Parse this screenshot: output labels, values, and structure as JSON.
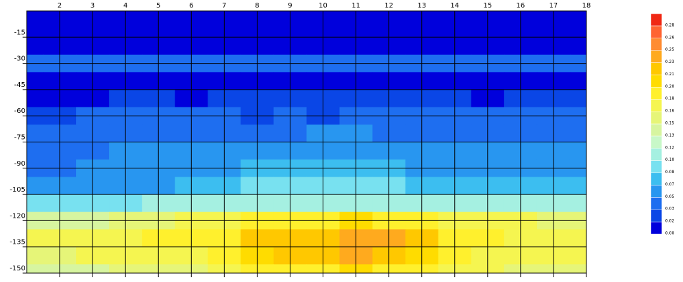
{
  "chart_data": {
    "type": "contour",
    "x": [
      1,
      2,
      3,
      4,
      5,
      6,
      7,
      8,
      9,
      10,
      11,
      12,
      13,
      14,
      15,
      16,
      17,
      18
    ],
    "y": [
      0,
      -10,
      -20,
      -30,
      -40,
      -50,
      -60,
      -70,
      -80,
      -90,
      -100,
      -110,
      -120,
      -130,
      -140,
      -150
    ],
    "z": [
      [
        0.01,
        0.01,
        0.01,
        0.01,
        0.01,
        0.01,
        0.01,
        0.01,
        0.01,
        0.01,
        0.01,
        0.01,
        0.01,
        0.01,
        0.01,
        0.01,
        0.01,
        0.01
      ],
      [
        0.01,
        0.01,
        0.01,
        0.01,
        0.01,
        0.01,
        0.01,
        0.01,
        0.01,
        0.01,
        0.01,
        0.01,
        0.01,
        0.01,
        0.01,
        0.01,
        0.01,
        0.01
      ],
      [
        0.015,
        0.015,
        0.015,
        0.015,
        0.015,
        0.015,
        0.015,
        0.015,
        0.015,
        0.015,
        0.015,
        0.015,
        0.015,
        0.015,
        0.015,
        0.015,
        0.015,
        0.015
      ],
      [
        0.045,
        0.045,
        0.045,
        0.045,
        0.045,
        0.045,
        0.045,
        0.045,
        0.045,
        0.045,
        0.045,
        0.045,
        0.045,
        0.045,
        0.045,
        0.045,
        0.045,
        0.045
      ],
      [
        0.01,
        0.01,
        0.01,
        0.01,
        0.01,
        0.01,
        0.01,
        0.015,
        0.015,
        0.015,
        0.015,
        0.015,
        0.01,
        0.01,
        0.01,
        0.01,
        0.01,
        0.01
      ],
      [
        0.012,
        0.012,
        0.012,
        0.025,
        0.025,
        0.012,
        0.025,
        0.025,
        0.025,
        0.025,
        0.025,
        0.025,
        0.025,
        0.025,
        0.012,
        0.025,
        0.025,
        0.025
      ],
      [
        0.025,
        0.02,
        0.03,
        0.03,
        0.03,
        0.03,
        0.03,
        0.025,
        0.03,
        0.025,
        0.03,
        0.03,
        0.03,
        0.03,
        0.03,
        0.03,
        0.03,
        0.03
      ],
      [
        0.035,
        0.035,
        0.035,
        0.04,
        0.045,
        0.045,
        0.04,
        0.045,
        0.045,
        0.05,
        0.05,
        0.045,
        0.045,
        0.045,
        0.045,
        0.045,
        0.04,
        0.04
      ],
      [
        0.035,
        0.035,
        0.04,
        0.05,
        0.05,
        0.055,
        0.055,
        0.06,
        0.06,
        0.06,
        0.065,
        0.06,
        0.055,
        0.055,
        0.05,
        0.05,
        0.05,
        0.05
      ],
      [
        0.045,
        0.04,
        0.05,
        0.055,
        0.055,
        0.055,
        0.06,
        0.07,
        0.07,
        0.07,
        0.075,
        0.07,
        0.06,
        0.055,
        0.055,
        0.055,
        0.06,
        0.055
      ],
      [
        0.06,
        0.06,
        0.06,
        0.065,
        0.065,
        0.07,
        0.07,
        0.08,
        0.08,
        0.08,
        0.085,
        0.08,
        0.075,
        0.07,
        0.07,
        0.07,
        0.07,
        0.07
      ],
      [
        0.09,
        0.09,
        0.09,
        0.095,
        0.1,
        0.1,
        0.1,
        0.11,
        0.11,
        0.11,
        0.115,
        0.11,
        0.105,
        0.1,
        0.1,
        0.1,
        0.1,
        0.1
      ],
      [
        0.14,
        0.14,
        0.145,
        0.15,
        0.155,
        0.16,
        0.165,
        0.18,
        0.185,
        0.19,
        0.2,
        0.19,
        0.18,
        0.17,
        0.16,
        0.16,
        0.155,
        0.15
      ],
      [
        0.165,
        0.17,
        0.17,
        0.175,
        0.18,
        0.185,
        0.19,
        0.215,
        0.22,
        0.225,
        0.24,
        0.23,
        0.21,
        0.19,
        0.18,
        0.175,
        0.175,
        0.17
      ],
      [
        0.15,
        0.155,
        0.16,
        0.17,
        0.17,
        0.175,
        0.18,
        0.2,
        0.21,
        0.22,
        0.23,
        0.215,
        0.2,
        0.185,
        0.175,
        0.17,
        0.17,
        0.165
      ],
      [
        0.13,
        0.14,
        0.14,
        0.15,
        0.15,
        0.155,
        0.16,
        0.18,
        0.19,
        0.19,
        0.2,
        0.19,
        0.18,
        0.17,
        0.16,
        0.155,
        0.15,
        0.15
      ]
    ],
    "xlim": [
      1,
      18
    ],
    "xticks": [
      2,
      3,
      4,
      5,
      6,
      7,
      8,
      9,
      10,
      11,
      12,
      13,
      14,
      15,
      16,
      17,
      18
    ],
    "ylim": [
      -150,
      0
    ],
    "yticks": [
      -15,
      -30,
      -45,
      -60,
      -75,
      -90,
      -105,
      -120,
      -135,
      -150
    ],
    "grid": true,
    "levels": [
      {
        "value": 0,
        "label": "0.00"
      },
      0.02,
      0.03,
      0.05,
      0.07,
      0.08,
      {
        "value": 0.1,
        "label": "0.10"
      },
      0.12,
      0.13,
      0.15,
      0.16,
      0.18,
      {
        "value": 0.2,
        "label": "0.20"
      },
      0.21,
      0.23,
      0.25,
      0.26,
      0.28
    ],
    "colors": [
      "#0000dc",
      "#0a46e6",
      "#1e6ef0",
      "#2896f0",
      "#3cbef0",
      "#78e1f0",
      "#a5f0e1",
      "#c8f8c8",
      "#d7f5a0",
      "#e6f578",
      "#f5f550",
      "#fff02d",
      "#ffdc00",
      "#ffc800",
      "#ffaa1e",
      "#ff8c32",
      "#ff6432",
      "#f02814"
    ]
  }
}
